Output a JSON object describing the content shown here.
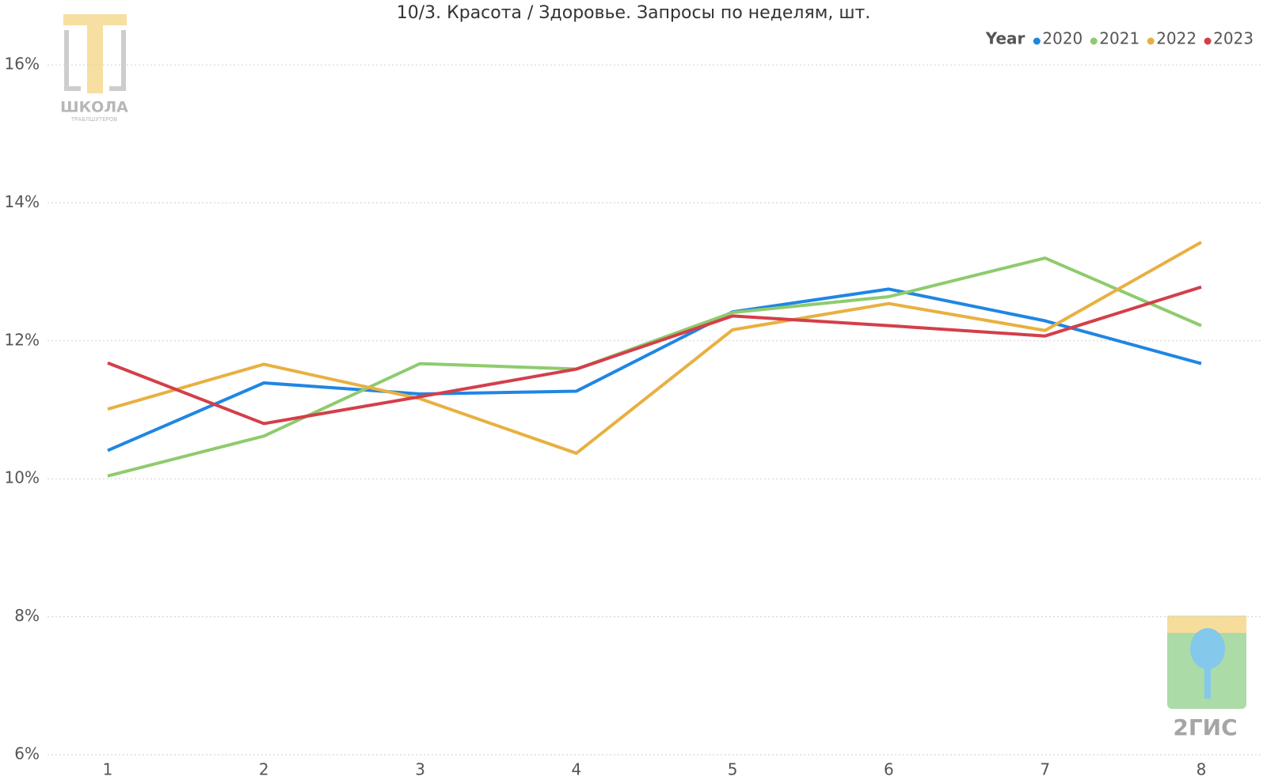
{
  "chart_data": {
    "type": "line",
    "title": "10/3. Красота / Здоровье. Запросы по неделям, шт.",
    "legend_title": "Year",
    "legend_position": "top-right",
    "x": [
      1,
      2,
      3,
      4,
      5,
      6,
      7,
      8
    ],
    "xlim": [
      1,
      8
    ],
    "xticks": [
      1,
      2,
      3,
      4,
      5,
      6,
      7,
      8
    ],
    "ylim": [
      6,
      16
    ],
    "yticks": [
      {
        "value": 6,
        "label": "6%"
      },
      {
        "value": 8,
        "label": "8%"
      },
      {
        "value": 10,
        "label": "10%"
      },
      {
        "value": 12,
        "label": "12%"
      },
      {
        "value": 14,
        "label": "14%"
      },
      {
        "value": 16,
        "label": "16%"
      }
    ],
    "grid": true,
    "series": [
      {
        "name": "2020",
        "color": "#1f86e4",
        "values": [
          10.41,
          11.39,
          11.23,
          11.27,
          12.42,
          12.75,
          12.29,
          11.67
        ]
      },
      {
        "name": "2021",
        "color": "#8ecb6e",
        "values": [
          10.04,
          10.62,
          11.67,
          11.59,
          12.41,
          12.64,
          13.2,
          12.22
        ]
      },
      {
        "name": "2022",
        "color": "#e8b040",
        "values": [
          11.01,
          11.66,
          11.16,
          10.37,
          12.16,
          12.54,
          12.15,
          13.43
        ]
      },
      {
        "name": "2023",
        "color": "#d33f4a",
        "values": [
          11.68,
          10.8,
          11.19,
          11.59,
          12.36,
          12.22,
          12.07,
          12.78
        ]
      }
    ]
  },
  "logos": {
    "school_name": "ШКОЛА",
    "school_sub": "ТРАБЛШУТЕРОВ",
    "brand": "2ГИС"
  }
}
